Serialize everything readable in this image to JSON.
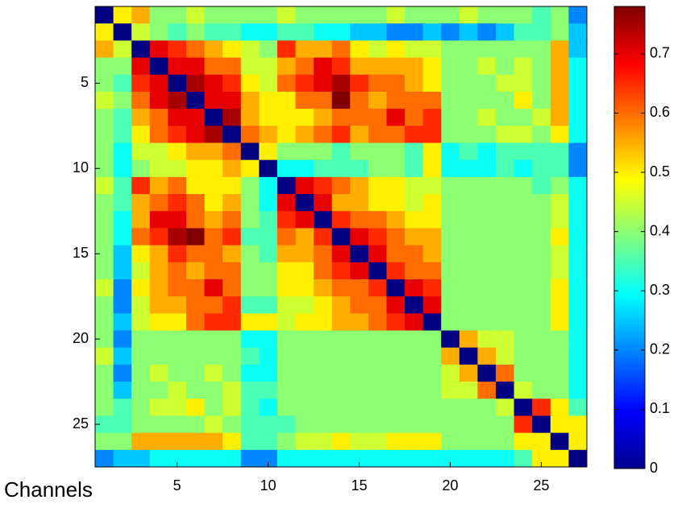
{
  "chart_data": {
    "type": "heatmap",
    "xlabel": "Channels",
    "colormap": "jet",
    "xlim": [
      0.5,
      27.5
    ],
    "ylim": [
      0.5,
      27.5
    ],
    "y_inverted": true,
    "xticks": [
      5,
      10,
      15,
      20,
      25
    ],
    "yticks": [
      5,
      10,
      15,
      20,
      25
    ],
    "zlim": [
      0,
      0.78
    ],
    "colorbar_ticks": [
      0,
      0.1,
      0.2,
      0.3,
      0.4,
      0.5,
      0.6,
      0.7
    ],
    "values": [
      [
        0,
        0.5,
        0.55,
        0.4,
        0.4,
        0.45,
        0.4,
        0.4,
        0.4,
        0.4,
        0.45,
        0.4,
        0.4,
        0.4,
        0.4,
        0.4,
        0.45,
        0.4,
        0.4,
        0.4,
        0.45,
        0.4,
        0.4,
        0.4,
        0.35,
        0.4,
        0.2
      ],
      [
        0.5,
        0,
        0.45,
        0.4,
        0.35,
        0.4,
        0.35,
        0.35,
        0.3,
        0.3,
        0.35,
        0.35,
        0.3,
        0.3,
        0.25,
        0.25,
        0.2,
        0.2,
        0.25,
        0.2,
        0.25,
        0.2,
        0.25,
        0.35,
        0.35,
        0.4,
        0.25
      ],
      [
        0.55,
        0.45,
        0,
        0.7,
        0.65,
        0.6,
        0.55,
        0.5,
        0.45,
        0.4,
        0.65,
        0.55,
        0.55,
        0.6,
        0.5,
        0.45,
        0.5,
        0.45,
        0.45,
        0.4,
        0.4,
        0.4,
        0.4,
        0.4,
        0.4,
        0.55,
        0.25
      ],
      [
        0.4,
        0.4,
        0.7,
        0,
        0.7,
        0.7,
        0.6,
        0.6,
        0.45,
        0.45,
        0.55,
        0.6,
        0.7,
        0.65,
        0.55,
        0.55,
        0.55,
        0.55,
        0.5,
        0.4,
        0.4,
        0.45,
        0.4,
        0.45,
        0.4,
        0.55,
        0.3
      ],
      [
        0.4,
        0.35,
        0.65,
        0.7,
        0,
        0.75,
        0.7,
        0.65,
        0.5,
        0.45,
        0.6,
        0.65,
        0.7,
        0.75,
        0.65,
        0.6,
        0.6,
        0.55,
        0.5,
        0.4,
        0.4,
        0.4,
        0.45,
        0.45,
        0.4,
        0.55,
        0.3
      ],
      [
        0.45,
        0.4,
        0.6,
        0.7,
        0.75,
        0,
        0.7,
        0.7,
        0.55,
        0.5,
        0.5,
        0.6,
        0.6,
        0.78,
        0.6,
        0.55,
        0.6,
        0.6,
        0.6,
        0.4,
        0.4,
        0.4,
        0.4,
        0.5,
        0.4,
        0.55,
        0.3
      ],
      [
        0.4,
        0.35,
        0.55,
        0.6,
        0.7,
        0.7,
        0,
        0.75,
        0.55,
        0.5,
        0.5,
        0.5,
        0.55,
        0.6,
        0.6,
        0.6,
        0.7,
        0.6,
        0.65,
        0.4,
        0.4,
        0.45,
        0.4,
        0.4,
        0.45,
        0.55,
        0.3
      ],
      [
        0.4,
        0.35,
        0.5,
        0.6,
        0.65,
        0.7,
        0.75,
        0,
        0.6,
        0.55,
        0.5,
        0.55,
        0.6,
        0.65,
        0.55,
        0.6,
        0.6,
        0.65,
        0.65,
        0.4,
        0.4,
        0.4,
        0.45,
        0.45,
        0.4,
        0.5,
        0.3
      ],
      [
        0.4,
        0.3,
        0.45,
        0.45,
        0.5,
        0.55,
        0.55,
        0.6,
        0,
        0.5,
        0.4,
        0.4,
        0.4,
        0.35,
        0.4,
        0.4,
        0.4,
        0.35,
        0.5,
        0.3,
        0.35,
        0.3,
        0.35,
        0.35,
        0.35,
        0.35,
        0.2
      ],
      [
        0.4,
        0.3,
        0.4,
        0.45,
        0.45,
        0.5,
        0.5,
        0.55,
        0.5,
        0,
        0.3,
        0.3,
        0.35,
        0.35,
        0.35,
        0.4,
        0.4,
        0.35,
        0.5,
        0.3,
        0.3,
        0.3,
        0.35,
        0.3,
        0.35,
        0.35,
        0.2
      ],
      [
        0.45,
        0.35,
        0.65,
        0.55,
        0.6,
        0.5,
        0.5,
        0.5,
        0.4,
        0.3,
        0,
        0.7,
        0.65,
        0.6,
        0.55,
        0.5,
        0.5,
        0.45,
        0.45,
        0.4,
        0.4,
        0.4,
        0.4,
        0.4,
        0.35,
        0.4,
        0.3
      ],
      [
        0.4,
        0.35,
        0.55,
        0.6,
        0.65,
        0.6,
        0.5,
        0.55,
        0.4,
        0.3,
        0.7,
        0,
        0.7,
        0.55,
        0.55,
        0.5,
        0.5,
        0.45,
        0.5,
        0.4,
        0.4,
        0.4,
        0.4,
        0.4,
        0.4,
        0.45,
        0.3
      ],
      [
        0.4,
        0.3,
        0.55,
        0.7,
        0.7,
        0.6,
        0.55,
        0.6,
        0.4,
        0.35,
        0.65,
        0.7,
        0,
        0.65,
        0.6,
        0.6,
        0.55,
        0.5,
        0.5,
        0.4,
        0.4,
        0.4,
        0.4,
        0.4,
        0.4,
        0.45,
        0.3
      ],
      [
        0.4,
        0.3,
        0.6,
        0.65,
        0.75,
        0.78,
        0.6,
        0.65,
        0.35,
        0.35,
        0.6,
        0.55,
        0.65,
        0,
        0.7,
        0.65,
        0.6,
        0.55,
        0.55,
        0.4,
        0.4,
        0.4,
        0.4,
        0.4,
        0.4,
        0.5,
        0.3
      ],
      [
        0.4,
        0.25,
        0.5,
        0.55,
        0.65,
        0.6,
        0.6,
        0.55,
        0.4,
        0.35,
        0.55,
        0.55,
        0.6,
        0.7,
        0,
        0.7,
        0.6,
        0.6,
        0.55,
        0.4,
        0.4,
        0.4,
        0.4,
        0.4,
        0.4,
        0.45,
        0.3
      ],
      [
        0.4,
        0.25,
        0.45,
        0.55,
        0.6,
        0.55,
        0.6,
        0.6,
        0.4,
        0.4,
        0.5,
        0.5,
        0.6,
        0.65,
        0.7,
        0,
        0.65,
        0.6,
        0.6,
        0.4,
        0.4,
        0.4,
        0.4,
        0.4,
        0.4,
        0.45,
        0.3
      ],
      [
        0.45,
        0.2,
        0.5,
        0.55,
        0.6,
        0.6,
        0.7,
        0.6,
        0.4,
        0.4,
        0.5,
        0.5,
        0.55,
        0.6,
        0.6,
        0.65,
        0,
        0.7,
        0.65,
        0.4,
        0.4,
        0.4,
        0.4,
        0.4,
        0.4,
        0.5,
        0.3
      ],
      [
        0.4,
        0.2,
        0.45,
        0.55,
        0.55,
        0.6,
        0.6,
        0.65,
        0.35,
        0.35,
        0.45,
        0.45,
        0.5,
        0.55,
        0.6,
        0.6,
        0.7,
        0,
        0.7,
        0.4,
        0.4,
        0.4,
        0.4,
        0.4,
        0.4,
        0.5,
        0.3
      ],
      [
        0.4,
        0.25,
        0.45,
        0.5,
        0.5,
        0.6,
        0.65,
        0.65,
        0.5,
        0.5,
        0.45,
        0.5,
        0.5,
        0.55,
        0.55,
        0.6,
        0.65,
        0.7,
        0,
        0.4,
        0.4,
        0.4,
        0.4,
        0.4,
        0.4,
        0.5,
        0.3
      ],
      [
        0.4,
        0.2,
        0.4,
        0.4,
        0.4,
        0.4,
        0.4,
        0.4,
        0.3,
        0.3,
        0.4,
        0.4,
        0.4,
        0.4,
        0.4,
        0.4,
        0.4,
        0.4,
        0.4,
        0,
        0.55,
        0.45,
        0.45,
        0.4,
        0.4,
        0.4,
        0.3
      ],
      [
        0.45,
        0.25,
        0.4,
        0.4,
        0.4,
        0.4,
        0.4,
        0.4,
        0.35,
        0.3,
        0.4,
        0.4,
        0.4,
        0.4,
        0.4,
        0.4,
        0.4,
        0.4,
        0.4,
        0.55,
        0,
        0.55,
        0.45,
        0.4,
        0.4,
        0.4,
        0.3
      ],
      [
        0.4,
        0.2,
        0.4,
        0.45,
        0.4,
        0.4,
        0.45,
        0.4,
        0.3,
        0.3,
        0.4,
        0.4,
        0.4,
        0.4,
        0.4,
        0.4,
        0.4,
        0.4,
        0.4,
        0.45,
        0.55,
        0,
        0.6,
        0.4,
        0.4,
        0.4,
        0.3
      ],
      [
        0.4,
        0.25,
        0.4,
        0.4,
        0.45,
        0.4,
        0.4,
        0.45,
        0.35,
        0.35,
        0.4,
        0.4,
        0.4,
        0.4,
        0.4,
        0.4,
        0.4,
        0.4,
        0.4,
        0.45,
        0.45,
        0.6,
        0,
        0.45,
        0.4,
        0.4,
        0.3
      ],
      [
        0.4,
        0.35,
        0.4,
        0.45,
        0.45,
        0.5,
        0.4,
        0.45,
        0.35,
        0.3,
        0.4,
        0.4,
        0.4,
        0.4,
        0.4,
        0.4,
        0.4,
        0.4,
        0.4,
        0.4,
        0.4,
        0.4,
        0.45,
        0,
        0.65,
        0.5,
        0.35
      ],
      [
        0.35,
        0.35,
        0.4,
        0.4,
        0.4,
        0.4,
        0.45,
        0.4,
        0.35,
        0.35,
        0.35,
        0.4,
        0.4,
        0.4,
        0.4,
        0.4,
        0.4,
        0.4,
        0.4,
        0.4,
        0.4,
        0.4,
        0.4,
        0.65,
        0,
        0.5,
        0.5
      ],
      [
        0.4,
        0.4,
        0.55,
        0.55,
        0.55,
        0.55,
        0.55,
        0.5,
        0.35,
        0.35,
        0.4,
        0.45,
        0.45,
        0.5,
        0.45,
        0.45,
        0.5,
        0.5,
        0.5,
        0.4,
        0.4,
        0.4,
        0.4,
        0.5,
        0.5,
        0,
        0.5
      ],
      [
        0.2,
        0.25,
        0.25,
        0.3,
        0.3,
        0.3,
        0.3,
        0.3,
        0.2,
        0.2,
        0.3,
        0.3,
        0.3,
        0.3,
        0.3,
        0.3,
        0.3,
        0.3,
        0.3,
        0.3,
        0.3,
        0.3,
        0.3,
        0.35,
        0.5,
        0.5,
        0
      ]
    ]
  }
}
